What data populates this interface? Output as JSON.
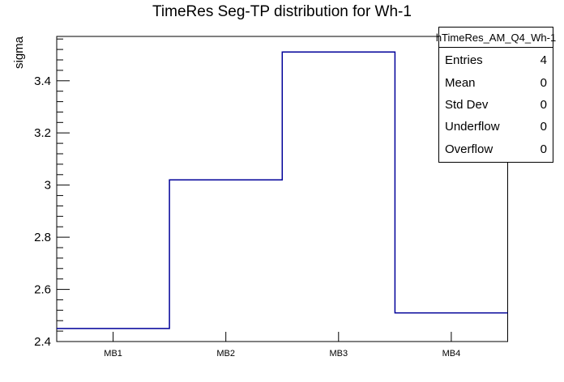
{
  "title": "TimeRes Seg-TP distribution for Wh-1",
  "y_axis": {
    "label": "sigma",
    "tick_labels": [
      "2.4",
      "2.6",
      "2.8",
      "3",
      "3.2",
      "3.4"
    ],
    "tick_values": [
      2.4,
      2.6,
      2.8,
      3.0,
      3.2,
      3.4
    ],
    "minor_step": 0.04
  },
  "x_axis": {
    "categories": [
      "MB1",
      "MB2",
      "MB3",
      "MB4"
    ]
  },
  "chart_data": {
    "type": "step-histogram",
    "title": "TimeRes Seg-TP distribution for Wh-1",
    "categories": [
      "MB1",
      "MB2",
      "MB3",
      "MB4"
    ],
    "values": [
      2.45,
      3.02,
      3.51,
      2.51
    ],
    "xlabel": "",
    "ylabel": "sigma",
    "ylim": [
      2.4,
      3.57
    ],
    "line_color": "#000099",
    "frame_color": "#000000",
    "grid": false,
    "legend_position": "none"
  },
  "stats_box": {
    "title": "hTimeRes_AM_Q4_Wh-1",
    "rows": [
      {
        "label": "Entries",
        "value": "4"
      },
      {
        "label": "Mean",
        "value": "0"
      },
      {
        "label": "Std Dev",
        "value": "0"
      },
      {
        "label": "Underflow",
        "value": "0"
      },
      {
        "label": "Overflow",
        "value": "0"
      }
    ]
  }
}
